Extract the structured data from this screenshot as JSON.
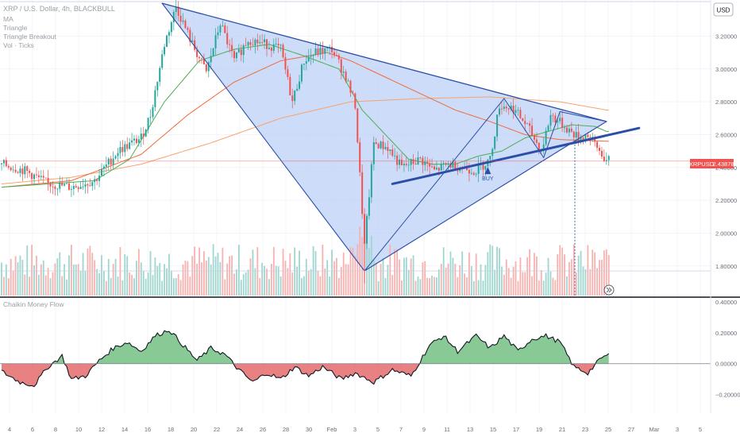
{
  "header": {
    "symbol_line": "XRP / U.S. Dollar, 4h, BLACKBULL",
    "indicator_lines": [
      "MA",
      "Triangle",
      "Triangle Breakout",
      "Vol · Ticks"
    ]
  },
  "currency_button": "USD",
  "price_badge": {
    "symbol": "XRPUSD",
    "price": "2.43878"
  },
  "buy_label": "BUY",
  "cmf_label": "Chaikin Money Flow",
  "colors": {
    "up": "#26a69a",
    "down": "#ef5350",
    "pattern_fill": "#bcd0f5",
    "pattern_line": "#2b4fa8",
    "ma_green": "#4caf50",
    "ma_red": "#f06a3c",
    "ma_orange": "#f9a36b",
    "cmf_pos": "#7cc38a",
    "cmf_neg": "#e57373"
  },
  "chart_data": [
    {
      "type": "candlestick",
      "title": "XRP / U.S. Dollar, 4h, BLACKBULL",
      "ylim": [
        1.62,
        3.42
      ],
      "price_ticks": [
        "3.20000",
        "3.00000",
        "2.80000",
        "2.60000",
        "2.40000",
        "2.20000",
        "2.00000",
        "1.80000"
      ],
      "price_tick_values": [
        3.2,
        3.0,
        2.8,
        2.6,
        2.4,
        2.2,
        2.0,
        1.8
      ],
      "x_tick_labels": [
        "4",
        "6",
        "8",
        "10",
        "12",
        "14",
        "16",
        "18",
        "20",
        "22",
        "24",
        "26",
        "28",
        "30",
        "Feb",
        "3",
        "5",
        "7",
        "9",
        "11",
        "13",
        "15",
        "17",
        "19",
        "21",
        "23",
        "25",
        "27",
        "Mar",
        "3",
        "5"
      ],
      "current_price": 2.43878,
      "price_anchors": [
        [
          0,
          2.42
        ],
        [
          10,
          2.38
        ],
        [
          20,
          2.3
        ],
        [
          30,
          2.28
        ],
        [
          40,
          2.32
        ],
        [
          50,
          2.5
        ],
        [
          60,
          2.58
        ],
        [
          64,
          2.72
        ],
        [
          70,
          3.15
        ],
        [
          75,
          3.38
        ],
        [
          82,
          3.15
        ],
        [
          88,
          2.98
        ],
        [
          94,
          3.28
        ],
        [
          100,
          3.05
        ],
        [
          106,
          3.18
        ],
        [
          114,
          3.15
        ],
        [
          120,
          3.12
        ],
        [
          125,
          2.8
        ],
        [
          130,
          3.05
        ],
        [
          135,
          3.1
        ],
        [
          142,
          3.12
        ],
        [
          148,
          2.95
        ],
        [
          152,
          2.78
        ],
        [
          156,
          1.92
        ],
        [
          160,
          2.55
        ],
        [
          166,
          2.52
        ],
        [
          172,
          2.4
        ],
        [
          180,
          2.45
        ],
        [
          186,
          2.38
        ],
        [
          192,
          2.42
        ],
        [
          198,
          2.4
        ],
        [
          204,
          2.38
        ],
        [
          210,
          2.45
        ],
        [
          214,
          2.78
        ],
        [
          220,
          2.76
        ],
        [
          226,
          2.65
        ],
        [
          232,
          2.5
        ],
        [
          236,
          2.72
        ],
        [
          242,
          2.65
        ],
        [
          248,
          2.58
        ],
        [
          252,
          2.6
        ],
        [
          256,
          2.52
        ],
        [
          260,
          2.44
        ]
      ],
      "ma_green_anchors": [
        [
          0,
          2.28
        ],
        [
          20,
          2.3
        ],
        [
          40,
          2.32
        ],
        [
          55,
          2.45
        ],
        [
          70,
          2.8
        ],
        [
          85,
          3.05
        ],
        [
          100,
          3.12
        ],
        [
          115,
          3.15
        ],
        [
          130,
          3.08
        ],
        [
          145,
          3.0
        ],
        [
          155,
          2.75
        ],
        [
          165,
          2.6
        ],
        [
          175,
          2.45
        ],
        [
          185,
          2.42
        ],
        [
          195,
          2.42
        ],
        [
          205,
          2.47
        ],
        [
          215,
          2.5
        ],
        [
          225,
          2.58
        ],
        [
          235,
          2.62
        ],
        [
          245,
          2.66
        ],
        [
          255,
          2.65
        ],
        [
          260,
          2.62
        ]
      ],
      "ma_red_anchors": [
        [
          0,
          2.28
        ],
        [
          30,
          2.32
        ],
        [
          60,
          2.48
        ],
        [
          80,
          2.72
        ],
        [
          100,
          2.92
        ],
        [
          120,
          3.05
        ],
        [
          140,
          3.1
        ],
        [
          150,
          3.05
        ],
        [
          165,
          2.95
        ],
        [
          180,
          2.85
        ],
        [
          195,
          2.75
        ],
        [
          210,
          2.68
        ],
        [
          225,
          2.6
        ],
        [
          240,
          2.57
        ],
        [
          260,
          2.56
        ]
      ],
      "ma_orange_anchors": [
        [
          0,
          2.3
        ],
        [
          30,
          2.34
        ],
        [
          60,
          2.42
        ],
        [
          90,
          2.55
        ],
        [
          120,
          2.7
        ],
        [
          150,
          2.8
        ],
        [
          180,
          2.82
        ],
        [
          210,
          2.83
        ],
        [
          240,
          2.8
        ],
        [
          260,
          2.75
        ]
      ],
      "triangle_top_line": {
        "from": [
          69,
          3.4
        ],
        "to": [
          260,
          2.68
        ]
      },
      "triangle_legs": [
        [
          69,
          3.4
        ],
        [
          156,
          1.77
        ],
        [
          260,
          2.68
        ]
      ],
      "triangle_inner": [
        [
          156,
          1.77
        ],
        [
          216,
          2.82
        ],
        [
          233,
          2.46
        ],
        [
          240,
          2.74
        ],
        [
          260,
          2.68
        ]
      ],
      "breakout_line": {
        "from": [
          168,
          2.3
        ],
        "to": [
          274,
          2.64
        ]
      },
      "buy_marker": {
        "index": 209,
        "price": 2.36
      }
    },
    {
      "type": "area",
      "title": "Chaikin Money Flow",
      "ylim": [
        -0.32,
        0.42
      ],
      "ticks": [
        "0.40000",
        "0.20000",
        "0.00000",
        "−0.20000"
      ],
      "tick_values": [
        0.4,
        0.2,
        0.0,
        -0.2
      ],
      "cmf_anchors": [
        [
          0,
          -0.05
        ],
        [
          8,
          -0.12
        ],
        [
          14,
          -0.14
        ],
        [
          20,
          -0.02
        ],
        [
          26,
          0.05
        ],
        [
          30,
          -0.1
        ],
        [
          36,
          -0.08
        ],
        [
          42,
          0.02
        ],
        [
          48,
          0.1
        ],
        [
          54,
          0.14
        ],
        [
          60,
          0.08
        ],
        [
          66,
          0.18
        ],
        [
          72,
          0.22
        ],
        [
          78,
          0.12
        ],
        [
          84,
          0.02
        ],
        [
          90,
          0.1
        ],
        [
          96,
          0.06
        ],
        [
          102,
          -0.04
        ],
        [
          108,
          -0.12
        ],
        [
          114,
          -0.06
        ],
        [
          120,
          -0.1
        ],
        [
          126,
          -0.02
        ],
        [
          132,
          -0.08
        ],
        [
          138,
          -0.02
        ],
        [
          146,
          -0.1
        ],
        [
          152,
          -0.06
        ],
        [
          160,
          -0.12
        ],
        [
          168,
          -0.04
        ],
        [
          176,
          -0.08
        ],
        [
          184,
          0.12
        ],
        [
          190,
          0.18
        ],
        [
          196,
          0.08
        ],
        [
          204,
          0.18
        ],
        [
          210,
          0.1
        ],
        [
          216,
          0.18
        ],
        [
          222,
          0.08
        ],
        [
          228,
          0.16
        ],
        [
          234,
          0.18
        ],
        [
          240,
          0.14
        ],
        [
          246,
          -0.02
        ],
        [
          252,
          -0.06
        ],
        [
          258,
          0.04
        ],
        [
          262,
          0.06
        ]
      ]
    }
  ]
}
